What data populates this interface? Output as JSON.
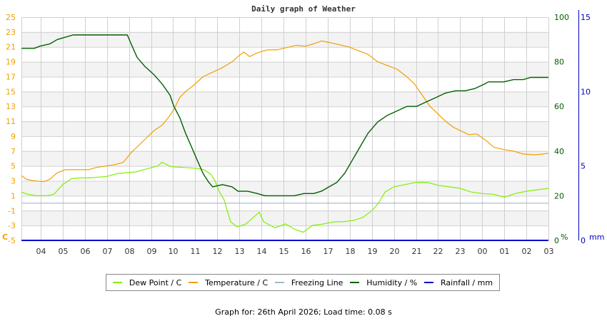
{
  "title": "Daily graph of Weather",
  "footer": "Graph for: 26th April 2026; Load time: 0.08 s",
  "colors": {
    "dew_point": "#80f000",
    "temperature": "#f0a000",
    "freezing": "#a0b8c8",
    "humidity": "#006000",
    "rainfall": "#0000d0",
    "band": "#f3f3f3",
    "grid": "#d0d0d0",
    "temp_axis": "#f0a000",
    "hum_axis": "#006000",
    "rain_axis": "#0000c0"
  },
  "legend": [
    {
      "label": "Dew Point / C",
      "color": "#80f000"
    },
    {
      "label": "Temperature / C",
      "color": "#f0a000"
    },
    {
      "label": "Freezing Line",
      "color": "#a0b8c8"
    },
    {
      "label": "Humidity / %",
      "color": "#006000"
    },
    {
      "label": "Rainfall / mm",
      "color": "#0000d0"
    }
  ],
  "chart_data": {
    "type": "line",
    "title": "Daily graph of Weather",
    "xlabel": "",
    "x_tick_labels": [
      "04",
      "05",
      "06",
      "07",
      "08",
      "09",
      "10",
      "11",
      "12",
      "13",
      "14",
      "15",
      "16",
      "17",
      "18",
      "19",
      "20",
      "21",
      "22",
      "23",
      "00",
      "01",
      "02",
      "03"
    ],
    "x_unit": "hours after 03:00 (04 = 1, next-day 03 = 24)",
    "xlim": [
      0.13,
      24
    ],
    "y_axes": [
      {
        "name": "temperature",
        "label": "C",
        "ylim": [
          -5,
          25
        ],
        "ticks": [
          -5,
          -3,
          -1,
          1,
          3,
          5,
          7,
          9,
          11,
          13,
          15,
          17,
          19,
          21,
          23,
          25
        ]
      },
      {
        "name": "humidity",
        "label": "%",
        "ylim": [
          0,
          100
        ],
        "ticks": [
          0,
          20,
          40,
          60,
          80,
          100
        ]
      },
      {
        "name": "rainfall",
        "label": "mm",
        "ylim": [
          0,
          15
        ],
        "ticks": [
          0,
          5,
          10,
          15
        ]
      }
    ],
    "grid": true,
    "legend_position": "bottom",
    "series": [
      {
        "name": "Dew Point / C",
        "axis": "temperature",
        "points": [
          [
            0.13,
            1.5
          ],
          [
            0.4,
            1.2
          ],
          [
            0.8,
            1.0
          ],
          [
            1.3,
            1.0
          ],
          [
            1.6,
            1.2
          ],
          [
            2.0,
            2.5
          ],
          [
            2.4,
            3.3
          ],
          [
            2.8,
            3.4
          ],
          [
            3.2,
            3.4
          ],
          [
            4.0,
            3.6
          ],
          [
            4.5,
            4.0
          ],
          [
            5.3,
            4.2
          ],
          [
            5.8,
            4.6
          ],
          [
            6.3,
            5.0
          ],
          [
            6.5,
            5.5
          ],
          [
            6.9,
            4.9
          ],
          [
            7.5,
            4.8
          ],
          [
            8.0,
            4.7
          ],
          [
            8.4,
            4.5
          ],
          [
            8.7,
            3.9
          ],
          [
            8.9,
            3.0
          ],
          [
            9.1,
            1.5
          ],
          [
            9.3,
            0.5
          ],
          [
            9.6,
            -2.5
          ],
          [
            9.9,
            -3.2
          ],
          [
            10.3,
            -2.8
          ],
          [
            10.6,
            -2.0
          ],
          [
            10.9,
            -1.2
          ],
          [
            11.1,
            -2.5
          ],
          [
            11.6,
            -3.3
          ],
          [
            12.1,
            -2.8
          ],
          [
            12.5,
            -3.5
          ],
          [
            12.9,
            -3.9
          ],
          [
            13.3,
            -3.0
          ],
          [
            13.8,
            -2.8
          ],
          [
            14.3,
            -2.5
          ],
          [
            14.7,
            -2.5
          ],
          [
            15.2,
            -2.3
          ],
          [
            15.6,
            -1.9
          ],
          [
            16.0,
            -1.0
          ],
          [
            16.3,
            0.0
          ],
          [
            16.6,
            1.5
          ],
          [
            17.0,
            2.2
          ],
          [
            17.5,
            2.5
          ],
          [
            18.0,
            2.8
          ],
          [
            18.5,
            2.8
          ],
          [
            19.0,
            2.4
          ],
          [
            19.5,
            2.2
          ],
          [
            20.0,
            2.0
          ],
          [
            20.5,
            1.5
          ],
          [
            21.0,
            1.3
          ],
          [
            21.5,
            1.2
          ],
          [
            22.0,
            0.8
          ],
          [
            22.5,
            1.3
          ],
          [
            23.0,
            1.6
          ],
          [
            24.0,
            2.0
          ]
        ]
      },
      {
        "name": "Temperature / C",
        "axis": "temperature",
        "points": [
          [
            0.13,
            3.7
          ],
          [
            0.4,
            3.2
          ],
          [
            0.8,
            3.0
          ],
          [
            1.3,
            2.9
          ],
          [
            1.6,
            3.2
          ],
          [
            2.0,
            4.1
          ],
          [
            2.4,
            4.5
          ],
          [
            3.0,
            4.5
          ],
          [
            3.6,
            4.5
          ],
          [
            4.0,
            4.8
          ],
          [
            4.5,
            5.0
          ],
          [
            5.0,
            5.2
          ],
          [
            5.4,
            5.5
          ],
          [
            5.8,
            6.8
          ],
          [
            6.2,
            7.8
          ],
          [
            6.6,
            8.8
          ],
          [
            7.0,
            9.8
          ],
          [
            7.4,
            10.5
          ],
          [
            7.8,
            11.8
          ],
          [
            8.0,
            12.6
          ],
          [
            8.3,
            14.2
          ],
          [
            8.6,
            15.0
          ],
          [
            9.0,
            15.8
          ],
          [
            9.5,
            17.0
          ],
          [
            10.0,
            17.6
          ],
          [
            10.5,
            18.2
          ],
          [
            11.0,
            19.0
          ],
          [
            11.3,
            19.7
          ],
          [
            11.6,
            20.3
          ],
          [
            11.9,
            19.7
          ],
          [
            12.3,
            20.2
          ],
          [
            12.8,
            20.6
          ],
          [
            13.3,
            20.6
          ],
          [
            13.8,
            20.9
          ],
          [
            14.3,
            21.2
          ],
          [
            14.8,
            21.1
          ],
          [
            15.3,
            21.5
          ],
          [
            15.6,
            21.8
          ],
          [
            16.0,
            21.6
          ],
          [
            16.5,
            21.3
          ],
          [
            17.0,
            21.0
          ],
          [
            17.5,
            20.5
          ],
          [
            18.0,
            20.0
          ],
          [
            18.5,
            19.0
          ],
          [
            19.0,
            18.5
          ],
          [
            19.5,
            18.0
          ],
          [
            20.0,
            17.0
          ],
          [
            20.4,
            16.0
          ],
          [
            20.8,
            14.5
          ],
          [
            21.2,
            13.0
          ],
          [
            21.6,
            12.0
          ],
          [
            22.0,
            11.0
          ],
          [
            22.4,
            10.2
          ],
          [
            22.8,
            9.7
          ],
          [
            23.2,
            9.2
          ],
          [
            23.6,
            9.3
          ],
          [
            24.0,
            8.6
          ],
          [
            24.5,
            7.5
          ],
          [
            25.0,
            7.2
          ],
          [
            25.5,
            7.0
          ],
          [
            26.0,
            6.6
          ],
          [
            26.6,
            6.5
          ],
          [
            27.0,
            6.6
          ],
          [
            27.3,
            6.7
          ]
        ]
      },
      {
        "name": "Freezing Line",
        "axis": "temperature",
        "points": [
          [
            0.13,
            0
          ],
          [
            24,
            0
          ]
        ]
      },
      {
        "name": "Humidity / %",
        "axis": "humidity",
        "points": [
          [
            0.13,
            86
          ],
          [
            0.2,
            86
          ],
          [
            0.8,
            86
          ],
          [
            1.1,
            87
          ],
          [
            1.6,
            88
          ],
          [
            2.0,
            90
          ],
          [
            2.4,
            91
          ],
          [
            2.8,
            92
          ],
          [
            3.2,
            92
          ],
          [
            4.0,
            92
          ],
          [
            5.0,
            92
          ],
          [
            5.6,
            92
          ],
          [
            5.8,
            88
          ],
          [
            6.1,
            82
          ],
          [
            6.5,
            78
          ],
          [
            7.0,
            74
          ],
          [
            7.4,
            70
          ],
          [
            7.8,
            65
          ],
          [
            8.0,
            60
          ],
          [
            8.3,
            55
          ],
          [
            8.6,
            48
          ],
          [
            8.9,
            42
          ],
          [
            9.2,
            36
          ],
          [
            9.5,
            30
          ],
          [
            9.8,
            26
          ],
          [
            10.0,
            24
          ],
          [
            10.5,
            25
          ],
          [
            11.0,
            24
          ],
          [
            11.3,
            22
          ],
          [
            11.8,
            22
          ],
          [
            12.3,
            21
          ],
          [
            12.7,
            20
          ],
          [
            13.2,
            20
          ],
          [
            13.7,
            20
          ],
          [
            14.2,
            20
          ],
          [
            14.7,
            21
          ],
          [
            15.2,
            21
          ],
          [
            15.6,
            22
          ],
          [
            16.0,
            24
          ],
          [
            16.4,
            26
          ],
          [
            16.8,
            30
          ],
          [
            17.2,
            36
          ],
          [
            17.6,
            42
          ],
          [
            18.0,
            48
          ],
          [
            18.5,
            53
          ],
          [
            19.0,
            56
          ],
          [
            19.5,
            58
          ],
          [
            20.0,
            60
          ],
          [
            20.5,
            60
          ],
          [
            21.0,
            62
          ],
          [
            21.5,
            64
          ],
          [
            22.0,
            66
          ],
          [
            22.5,
            67
          ],
          [
            23.0,
            67
          ],
          [
            23.5,
            68
          ],
          [
            24.0,
            70
          ],
          [
            24.2,
            71
          ],
          [
            24.6,
            71
          ],
          [
            25.0,
            71
          ],
          [
            25.5,
            72
          ],
          [
            26.0,
            72
          ],
          [
            26.4,
            73
          ],
          [
            26.8,
            73
          ],
          [
            27.3,
            73
          ]
        ]
      },
      {
        "name": "Rainfall / mm",
        "axis": "rainfall",
        "points": [
          [
            0.13,
            0
          ],
          [
            24,
            0
          ]
        ]
      }
    ]
  }
}
